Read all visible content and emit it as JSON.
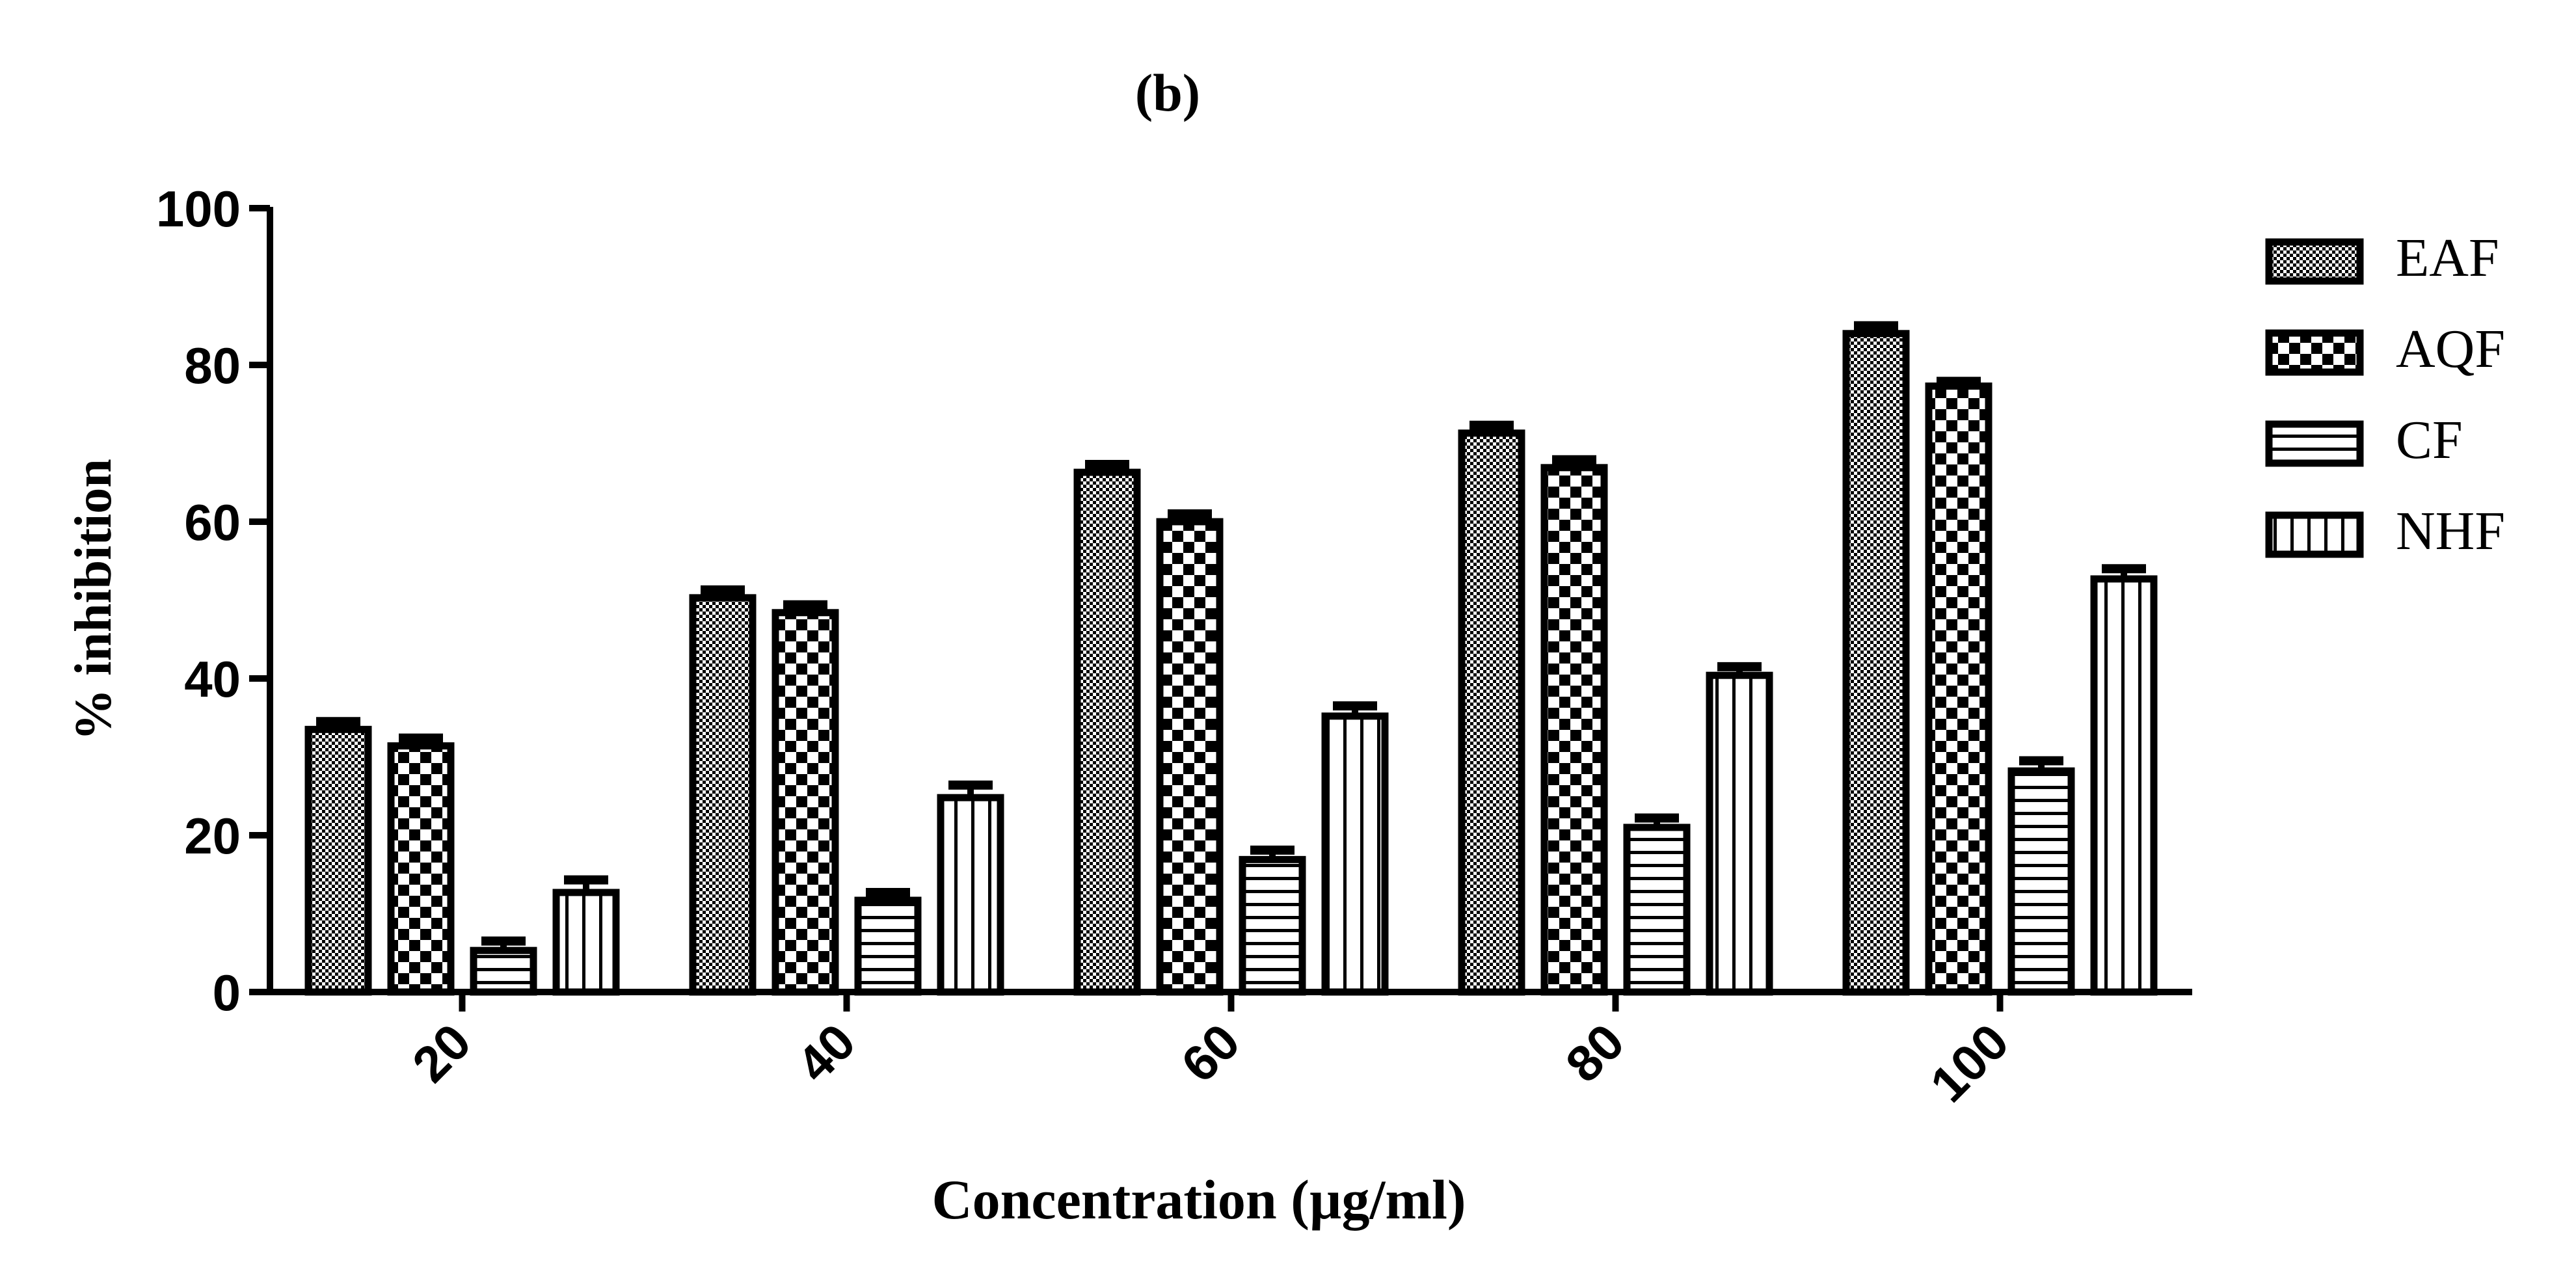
{
  "chart_data": {
    "type": "bar",
    "title": "(b)",
    "xlabel": "Concentration (µg/ml)",
    "ylabel": "% inhibition",
    "categories": [
      "20",
      "40",
      "60",
      "80",
      "100"
    ],
    "ylim": [
      0,
      100
    ],
    "yticks": [
      0,
      20,
      40,
      60,
      80,
      100
    ],
    "legend_position": "right",
    "grid": false,
    "series": [
      {
        "name": "EAF",
        "pattern": "fine-checker",
        "values": [
          33.5,
          50.3,
          66.3,
          71.3,
          84.0
        ],
        "errors": [
          1.0,
          1.0,
          1.0,
          1.0,
          1.0
        ]
      },
      {
        "name": "AQF",
        "pattern": "coarse-checker",
        "values": [
          31.4,
          48.4,
          60.0,
          66.9,
          77.3
        ],
        "errors": [
          1.0,
          1.0,
          1.0,
          1.0,
          0.6
        ]
      },
      {
        "name": "CF",
        "pattern": "horizontal-lines",
        "values": [
          5.3,
          11.7,
          16.9,
          21.0,
          28.2
        ],
        "errors": [
          1.2,
          1.0,
          1.2,
          1.2,
          1.3
        ]
      },
      {
        "name": "NHF",
        "pattern": "vertical-lines",
        "values": [
          12.7,
          24.8,
          35.2,
          40.4,
          52.7
        ],
        "errors": [
          1.6,
          1.6,
          1.3,
          1.1,
          1.3
        ]
      }
    ],
    "colors": {
      "outline": "#000000",
      "fill": "#ffffff"
    }
  }
}
